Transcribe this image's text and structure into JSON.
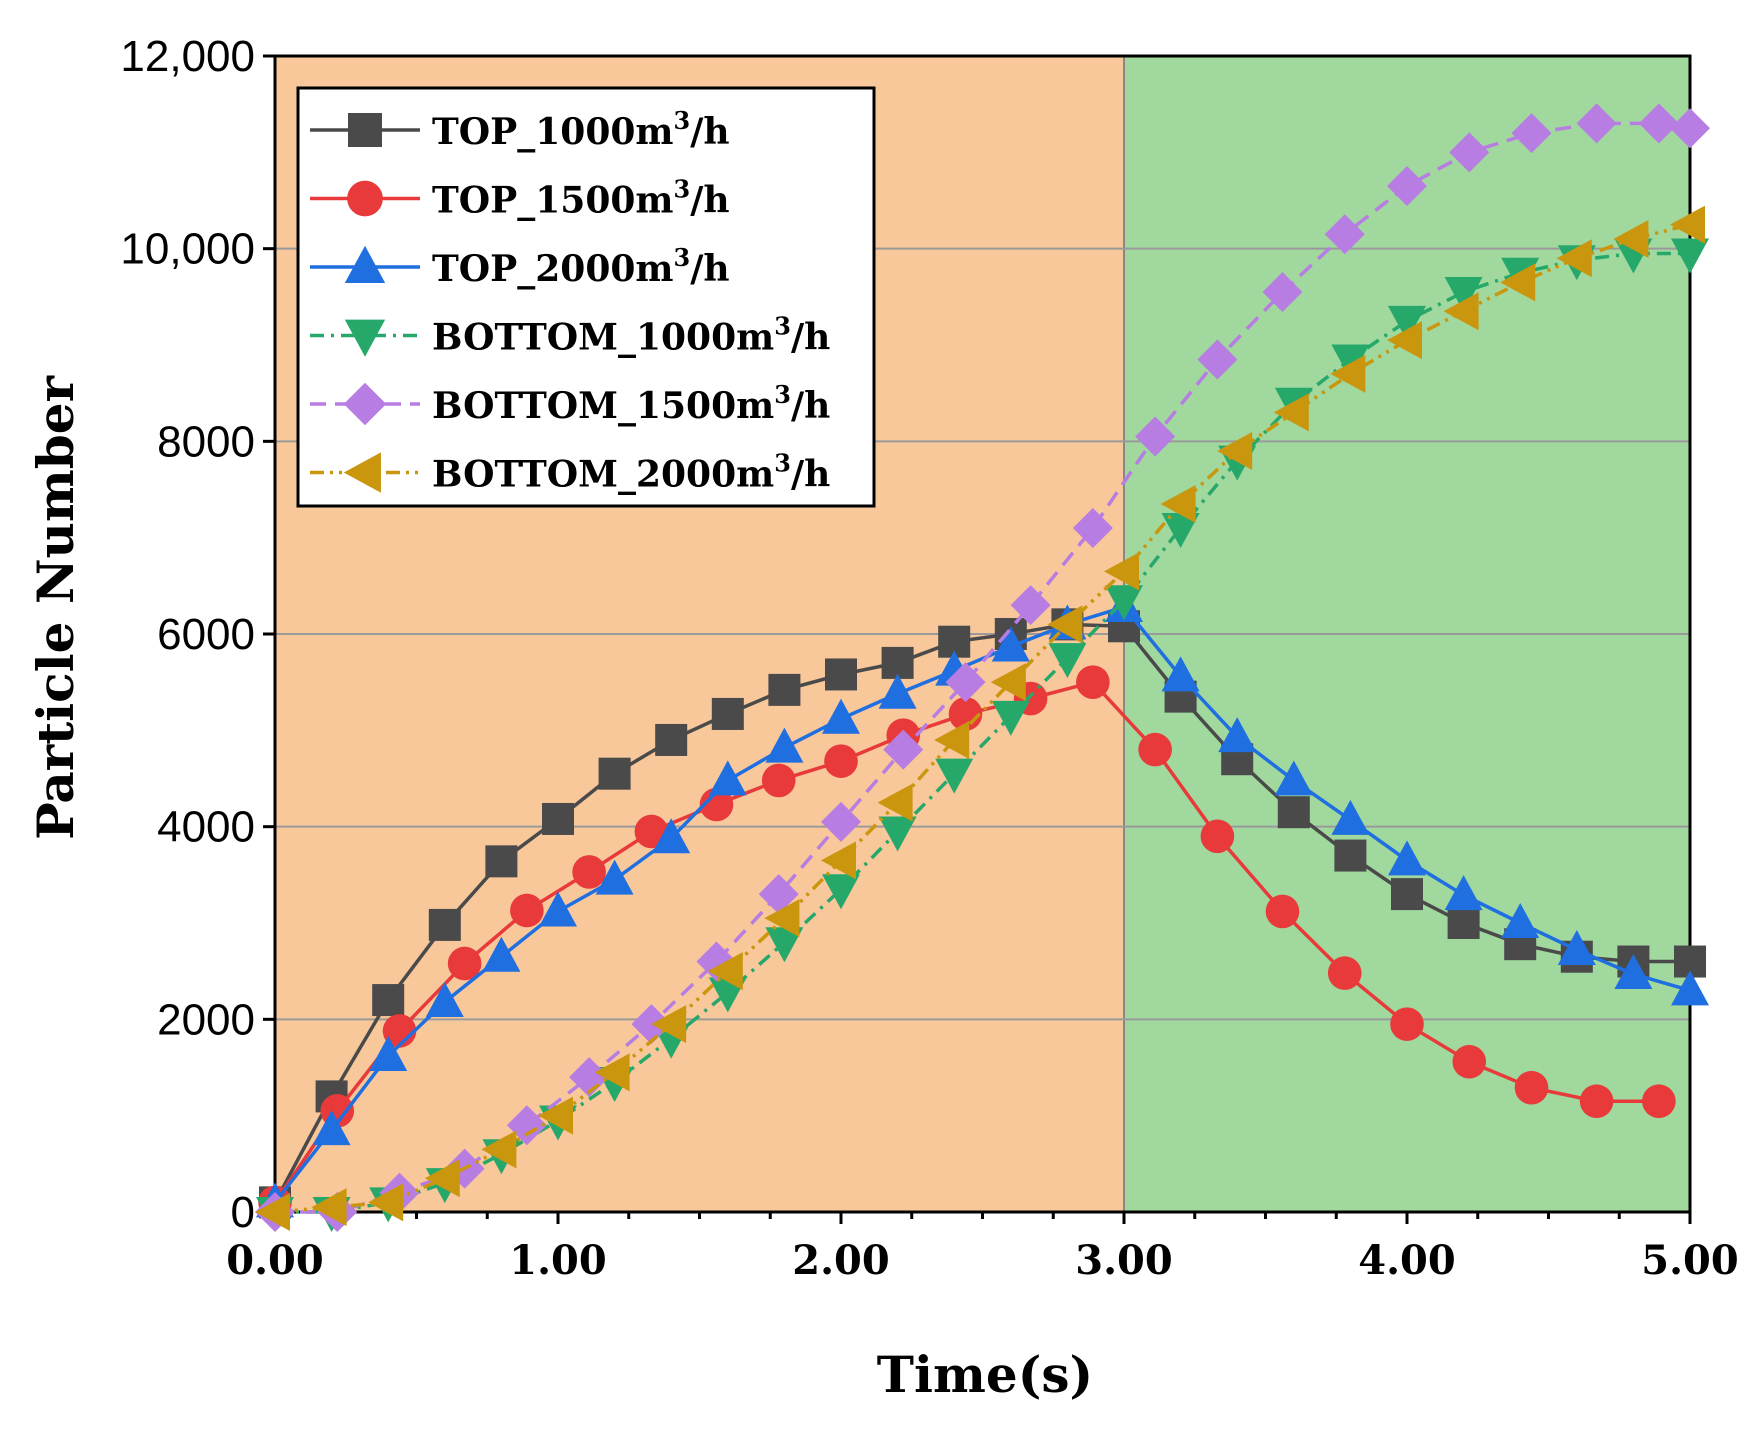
{
  "chart_data": {
    "type": "line",
    "title": "",
    "xlabel": "Time(s)",
    "ylabel": "Particle Number",
    "xlim": [
      0,
      5
    ],
    "ylim": [
      0,
      12000
    ],
    "x_tick_labels": [
      "0.00",
      "1.00",
      "2.00",
      "3.00",
      "4.00",
      "5.00"
    ],
    "x_tick_values": [
      0,
      1,
      2,
      3,
      4,
      5
    ],
    "y_tick_labels": [
      "0",
      "2000",
      "4000",
      "6000",
      "8000",
      "10,000",
      "12,000"
    ],
    "y_tick_values": [
      0,
      2000,
      4000,
      6000,
      8000,
      10000,
      12000
    ],
    "grid": "horizontal",
    "legend_position": "top-left",
    "regions": [
      {
        "x_from": 0,
        "x_to": 3,
        "color": "#f8c79a"
      },
      {
        "x_from": 3,
        "x_to": 5,
        "color": "#a0d89e"
      }
    ],
    "series": [
      {
        "name": "TOP_1000m³/h",
        "label_main": "TOP_1000m",
        "label_sup": "3",
        "label_tail": "/h",
        "color": "#4a4a4a",
        "marker": "square",
        "dash": "solid",
        "x": [
          0.0,
          0.2,
          0.4,
          0.6,
          0.8,
          1.0,
          1.2,
          1.4,
          1.6,
          1.8,
          2.0,
          2.2,
          2.4,
          2.6,
          2.8,
          3.0,
          3.2,
          3.4,
          3.6,
          3.8,
          4.0,
          4.2,
          4.4,
          4.6,
          4.8,
          5.0
        ],
        "y": [
          100,
          1200,
          2200,
          2980,
          3640,
          4080,
          4550,
          4900,
          5170,
          5420,
          5580,
          5700,
          5920,
          6000,
          6100,
          6080,
          5350,
          4700,
          4150,
          3700,
          3300,
          3000,
          2780,
          2650,
          2600,
          2600
        ]
      },
      {
        "name": "TOP_1500m³/h",
        "label_main": "TOP_1500m",
        "label_sup": "3",
        "label_tail": "/h",
        "color": "#e83a3a",
        "marker": "circle",
        "dash": "solid",
        "x": [
          0.0,
          0.22,
          0.44,
          0.67,
          0.89,
          1.11,
          1.33,
          1.56,
          1.78,
          2.0,
          2.22,
          2.44,
          2.67,
          2.89,
          3.11,
          3.33,
          3.56,
          3.78,
          4.0,
          4.22,
          4.44,
          4.67,
          4.89
        ],
        "y": [
          100,
          1050,
          1880,
          2580,
          3130,
          3530,
          3950,
          4230,
          4480,
          4680,
          4950,
          5170,
          5330,
          5500,
          4800,
          3900,
          3120,
          2480,
          1950,
          1560,
          1290,
          1150,
          1150
        ]
      },
      {
        "name": "TOP_2000m³/h",
        "label_main": "TOP_2000m",
        "label_sup": "3",
        "label_tail": "/h",
        "color": "#1f6fe0",
        "marker": "triangle-up",
        "dash": "solid",
        "x": [
          0.0,
          0.2,
          0.4,
          0.6,
          0.8,
          1.0,
          1.2,
          1.4,
          1.6,
          1.8,
          2.0,
          2.2,
          2.4,
          2.6,
          2.8,
          3.0,
          3.2,
          3.4,
          3.6,
          3.8,
          4.0,
          4.2,
          4.4,
          4.6,
          4.8,
          5.0
        ],
        "y": [
          100,
          850,
          1620,
          2180,
          2650,
          3120,
          3450,
          3880,
          4480,
          4820,
          5120,
          5380,
          5620,
          5870,
          6100,
          6280,
          5560,
          4930,
          4480,
          4070,
          3650,
          3290,
          3000,
          2720,
          2470,
          2300
        ]
      },
      {
        "name": "BOTTOM_1000m³/h",
        "label_main": "BOTTOM_1000m",
        "label_sup": "3",
        "label_tail": "/h",
        "color": "#27a86b",
        "marker": "triangle-down",
        "dash": "dashdot",
        "x": [
          0.0,
          0.2,
          0.4,
          0.6,
          0.8,
          1.0,
          1.2,
          1.4,
          1.6,
          1.8,
          2.0,
          2.2,
          2.4,
          2.6,
          2.8,
          3.0,
          3.2,
          3.4,
          3.6,
          3.8,
          4.0,
          4.2,
          4.4,
          4.6,
          4.8,
          5.0
        ],
        "y": [
          0,
          0,
          100,
          300,
          600,
          950,
          1350,
          1800,
          2280,
          2800,
          3350,
          3950,
          4550,
          5150,
          5750,
          6350,
          7100,
          7800,
          8400,
          8850,
          9250,
          9550,
          9750,
          9880,
          9950,
          9950
        ]
      },
      {
        "name": "BOTTOM_1500m³/h",
        "label_main": "BOTTOM_1500m",
        "label_sup": "3",
        "label_tail": "/h",
        "color": "#b77de3",
        "marker": "diamond",
        "dash": "dash",
        "x": [
          0.0,
          0.22,
          0.44,
          0.67,
          0.89,
          1.11,
          1.33,
          1.56,
          1.78,
          2.0,
          2.22,
          2.44,
          2.67,
          2.89,
          3.11,
          3.33,
          3.56,
          3.78,
          4.0,
          4.22,
          4.44,
          4.67,
          4.89,
          5.0
        ],
        "y": [
          0,
          0,
          200,
          450,
          900,
          1400,
          1950,
          2600,
          3300,
          4050,
          4800,
          5500,
          6300,
          7100,
          8050,
          8850,
          9550,
          10150,
          10650,
          11000,
          11200,
          11300,
          11300,
          11250
        ]
      },
      {
        "name": "BOTTOM_2000m³/h",
        "label_main": "BOTTOM_2000m",
        "label_sup": "3",
        "label_tail": "/h",
        "color": "#c9960e",
        "marker": "triangle-left",
        "dash": "dashdotdot",
        "x": [
          0.0,
          0.2,
          0.4,
          0.6,
          0.8,
          1.0,
          1.2,
          1.4,
          1.6,
          1.8,
          2.0,
          2.2,
          2.4,
          2.6,
          2.8,
          3.0,
          3.2,
          3.4,
          3.6,
          3.8,
          4.0,
          4.2,
          4.4,
          4.6,
          4.8,
          5.0
        ],
        "y": [
          0,
          50,
          100,
          350,
          650,
          1000,
          1450,
          1950,
          2500,
          3050,
          3650,
          4250,
          4900,
          5500,
          6100,
          6650,
          7350,
          7900,
          8300,
          8700,
          9050,
          9350,
          9650,
          9900,
          10100,
          10250
        ]
      }
    ]
  }
}
